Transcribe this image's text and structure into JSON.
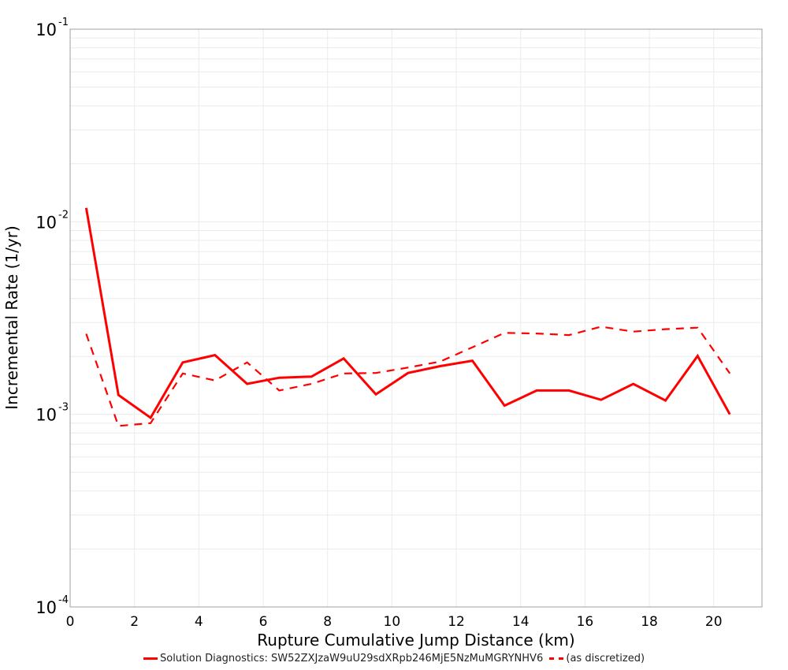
{
  "chart_data": {
    "type": "line",
    "title": "",
    "xlabel": "Rupture Cumulative Jump Distance (km)",
    "ylabel": "Incremental Rate (1/yr)",
    "xlim": [
      0,
      21.5
    ],
    "ylim": [
      0.0001,
      0.1
    ],
    "yscale": "log",
    "grid": true,
    "legend_position": "bottom",
    "x_ticks": [
      "0",
      "2",
      "4",
      "6",
      "8",
      "10",
      "12",
      "14",
      "16",
      "18",
      "20"
    ],
    "y_ticks": [
      {
        "base": "10",
        "exp": "-1"
      },
      {
        "base": "10",
        "exp": "-2"
      },
      {
        "base": "10",
        "exp": "-3"
      },
      {
        "base": "10",
        "exp": "-4"
      }
    ],
    "x": [
      0.5,
      1.5,
      2.5,
      3.5,
      4.5,
      5.5,
      6.5,
      7.5,
      8.5,
      9.5,
      10.5,
      11.5,
      12.5,
      13.5,
      14.5,
      15.5,
      16.5,
      17.5,
      18.5,
      19.5,
      20.5
    ],
    "series": [
      {
        "name": "Solution Diagnostics: SW52ZXJzaW9uU29sdXRpb246MjE5NzMuMGRYNHV6",
        "style": "solid",
        "color": "#ff0000",
        "values": [
          0.0118,
          0.00126,
          0.00096,
          0.00186,
          0.00203,
          0.00144,
          0.00155,
          0.00157,
          0.00195,
          0.00127,
          0.00164,
          0.00178,
          0.0019,
          0.00111,
          0.00133,
          0.00133,
          0.00119,
          0.00144,
          0.00118,
          0.00201,
          0.001
        ]
      },
      {
        "name": "(as discretized)",
        "style": "dashed",
        "color": "#ff0000",
        "values": [
          0.00262,
          0.00087,
          0.0009,
          0.00163,
          0.0015,
          0.00186,
          0.00133,
          0.00144,
          0.00163,
          0.00164,
          0.00175,
          0.00188,
          0.00223,
          0.00265,
          0.00263,
          0.00258,
          0.00285,
          0.00269,
          0.00277,
          0.00282,
          0.00163
        ]
      }
    ]
  },
  "legend": {
    "items": [
      {
        "label": "Solution Diagnostics: SW52ZXJzaW9uU29sdXRpb246MjE5NzMuMGRYNHV6",
        "style": "solid"
      },
      {
        "label": "(as discretized)",
        "style": "dashed"
      }
    ]
  }
}
